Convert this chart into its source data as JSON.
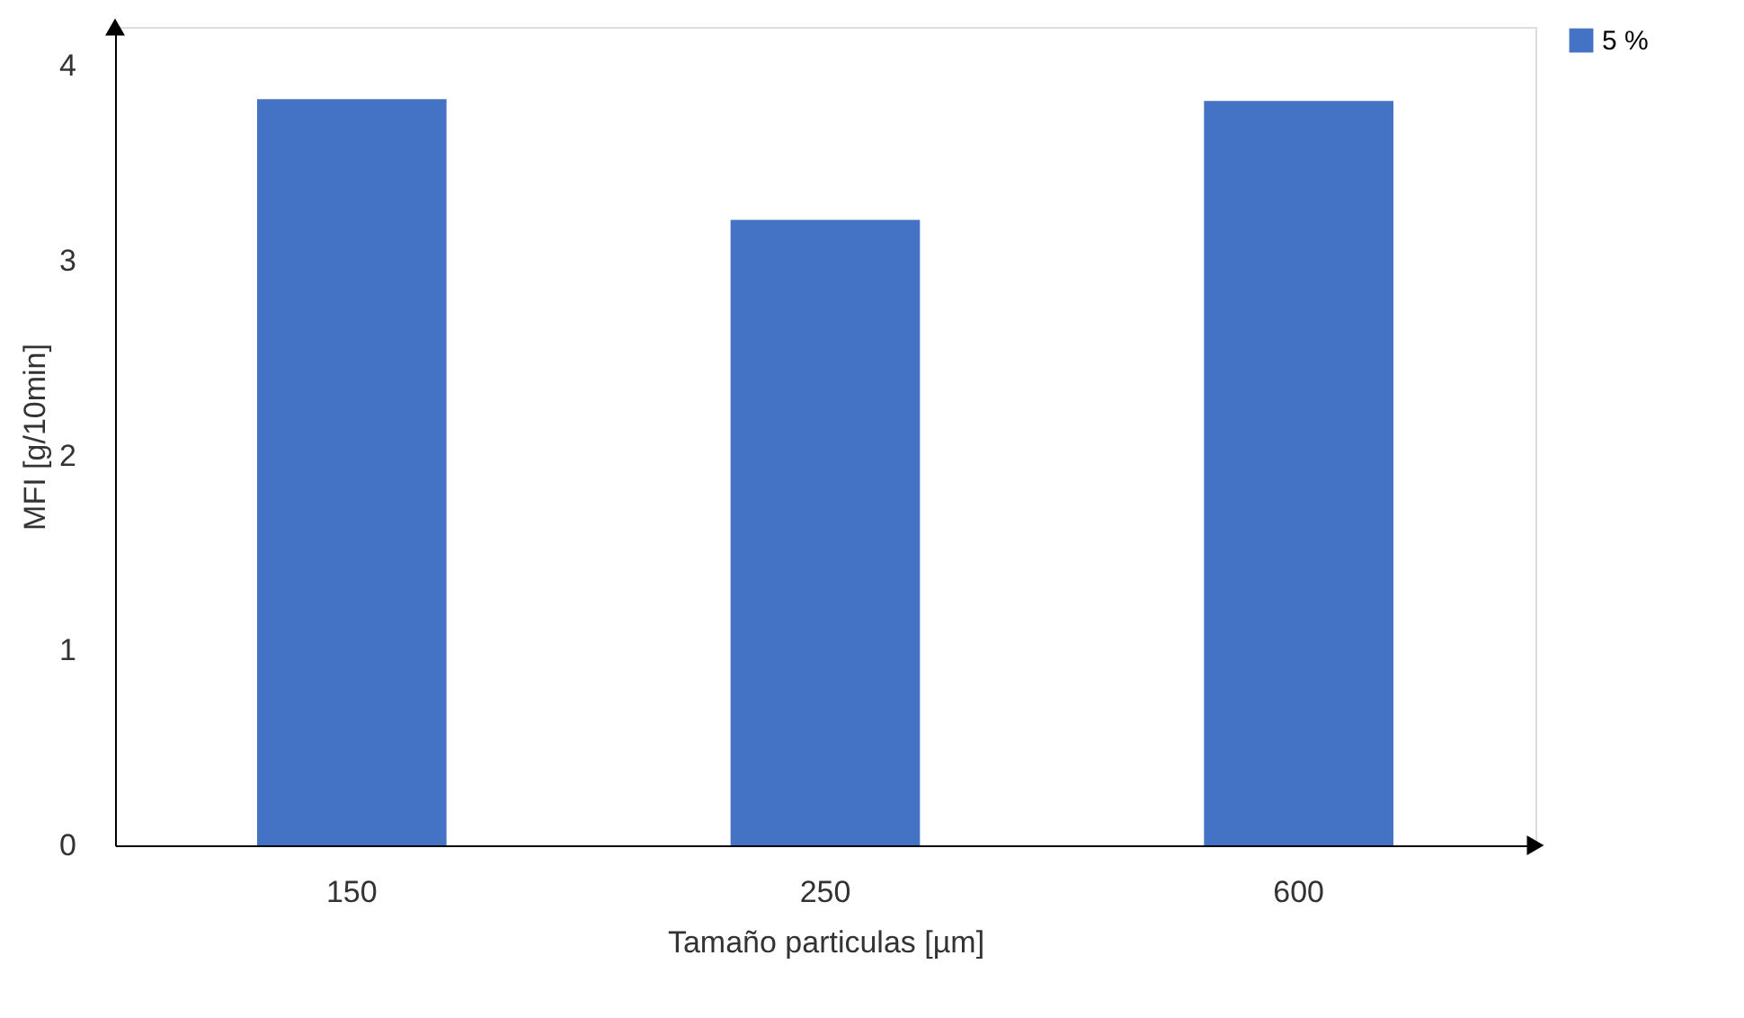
{
  "chart_data": {
    "type": "bar",
    "xlabel": "Tamaño particulas [µm]",
    "ylabel": "MFI [g/10min]",
    "categories": [
      "150",
      "250",
      "600"
    ],
    "series": [
      {
        "name": "5 %",
        "color": "#4472c4",
        "values": [
          3.83,
          3.21,
          3.82
        ]
      }
    ],
    "ylim": [
      0,
      4.2
    ],
    "yticks": [
      0,
      1,
      2,
      3,
      4
    ],
    "grid": false,
    "legend": "right"
  }
}
